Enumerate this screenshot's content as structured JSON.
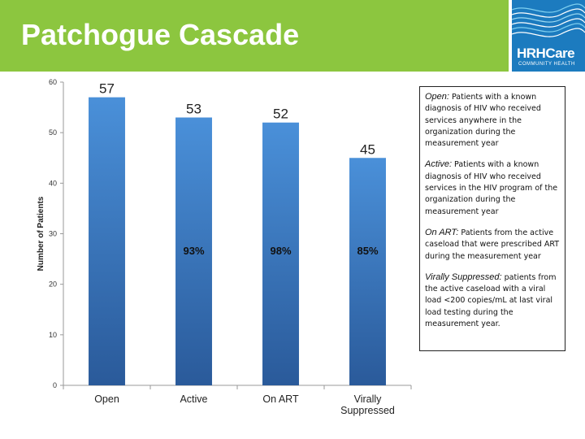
{
  "header": {
    "title": "Patchogue Cascade",
    "logo_name": "HRHCare",
    "logo_subtitle": "COMMUNITY HEALTH"
  },
  "colors": {
    "title_bar": "#8cc63f",
    "bar_top": "#4a90d9",
    "bar_bottom": "#2a5a9a",
    "logo_bg": "#1c7bbf"
  },
  "chart_data": {
    "type": "bar",
    "categories": [
      "Open",
      "Active",
      "On ART",
      "Virally\nSuppressed"
    ],
    "values": [
      57,
      53,
      52,
      45
    ],
    "value_labels": [
      "57",
      "53",
      "52",
      "45"
    ],
    "percent_labels": [
      "",
      "93%",
      "98%",
      "85%"
    ],
    "ylabel": "Number of Patients",
    "ylim": [
      0,
      60
    ],
    "yticks": [
      0,
      10,
      20,
      30,
      40,
      50,
      60
    ],
    "grid": false,
    "legend": "none"
  },
  "definitions": [
    {
      "term": "Open:",
      "text": " Patients with a known diagnosis of HIV who received services anywhere in the organization during the measurement year"
    },
    {
      "term": "Active:",
      "text": " Patients with a known diagnosis of HIV who received services in the HIV program of the organization during the measurement year"
    },
    {
      "term": "On ART:",
      "text": " Patients from the active caseload that were prescribed ART during the measurement year"
    },
    {
      "term": "Virally Suppressed:",
      "text": " patients from the active caseload with a viral load <200 copies/mL at last viral load testing during the measurement year."
    }
  ]
}
